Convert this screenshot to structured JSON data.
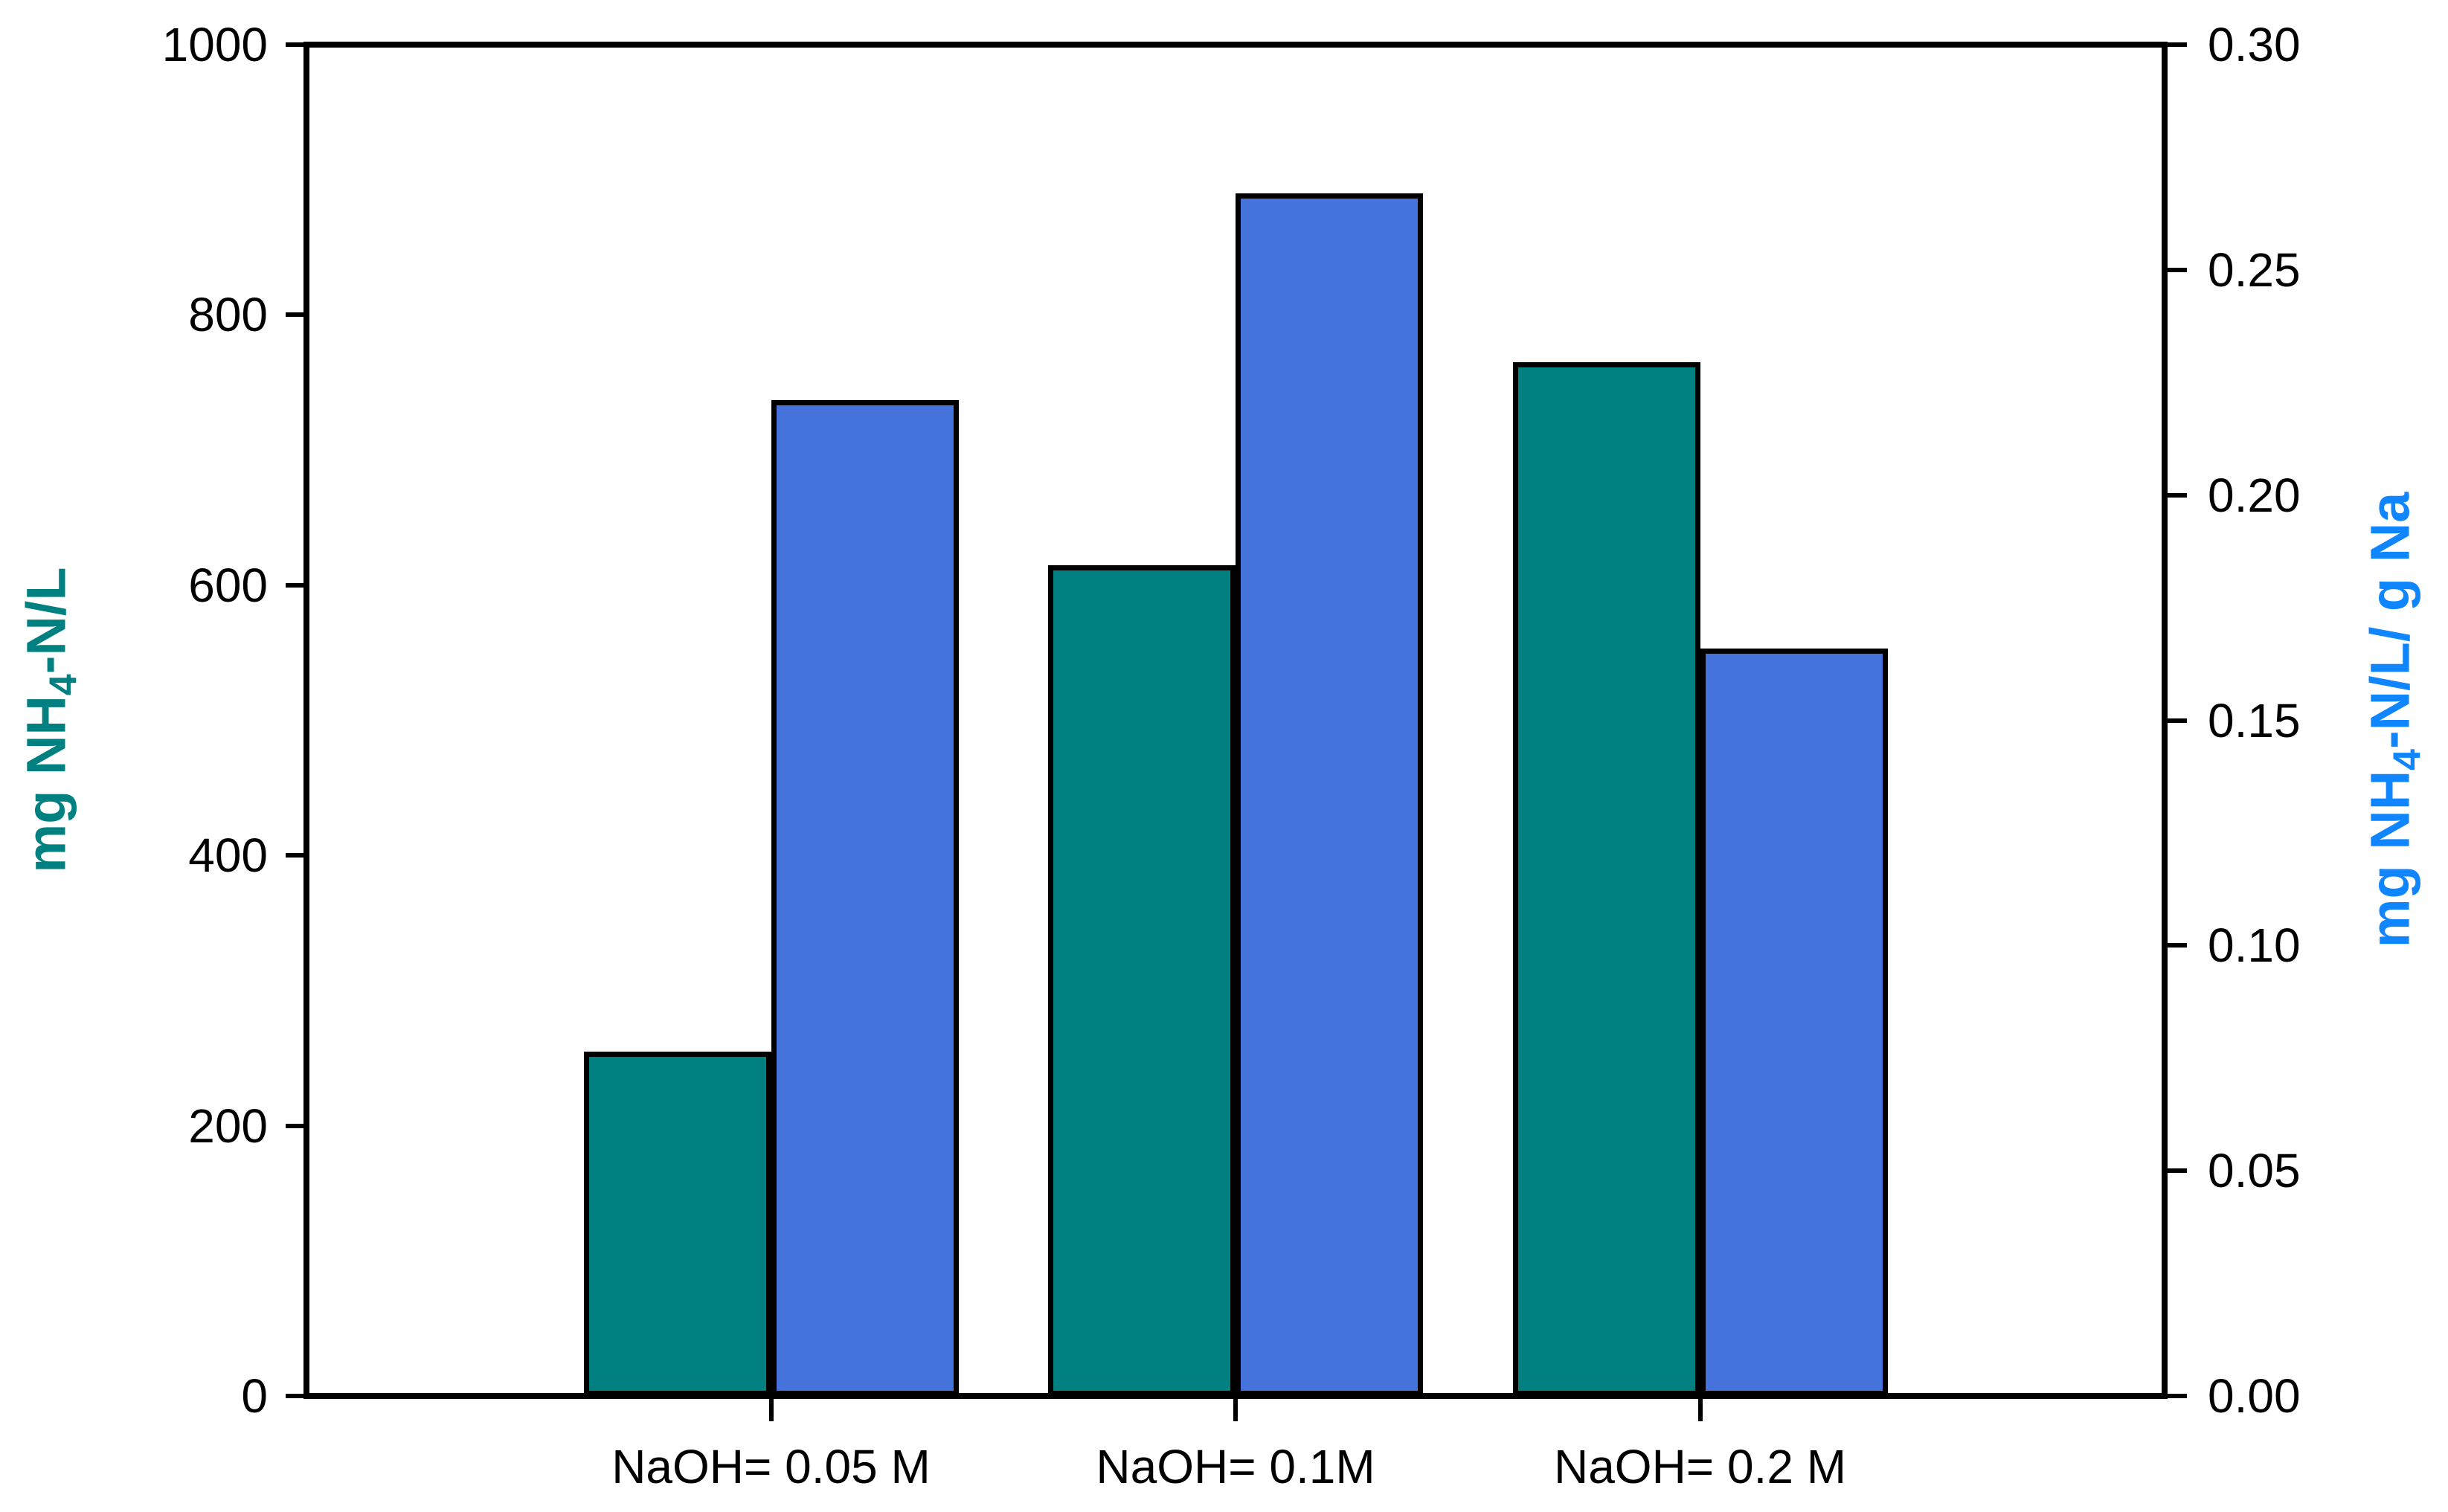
{
  "chart_data": {
    "type": "bar",
    "title": "",
    "legend": false,
    "grid": false,
    "categories": [
      "NaOH= 0.05 M",
      "NaOH= 0.1M",
      "NaOH= 0.2 M"
    ],
    "series": [
      {
        "name": "mg NH4-N/L",
        "axis": "left",
        "color": "#008080",
        "values": [
          255,
          615,
          765
        ]
      },
      {
        "name": "mg NH4-N/L/ g Na",
        "axis": "right",
        "color": "#4673DB",
        "values": [
          0.221,
          0.267,
          0.166
        ]
      }
    ],
    "y_left": {
      "label_prefix": "mg NH",
      "label_sub": "4",
      "label_suffix": "-N/L",
      "color": "#008080",
      "min": 0,
      "max": 1000,
      "ticks": [
        "0",
        "200",
        "400",
        "600",
        "800",
        "1000"
      ]
    },
    "y_right": {
      "label_prefix": "mg NH",
      "label_sub": "4",
      "label_suffix": "-N/L/ g Na",
      "color": "#0F86FF",
      "min": 0.0,
      "max": 0.3,
      "ticks": [
        "0.00",
        "0.05",
        "0.10",
        "0.15",
        "0.20",
        "0.25",
        "0.30"
      ]
    },
    "bar_border_color": "#000000",
    "xlabel": "",
    "frame": true
  }
}
